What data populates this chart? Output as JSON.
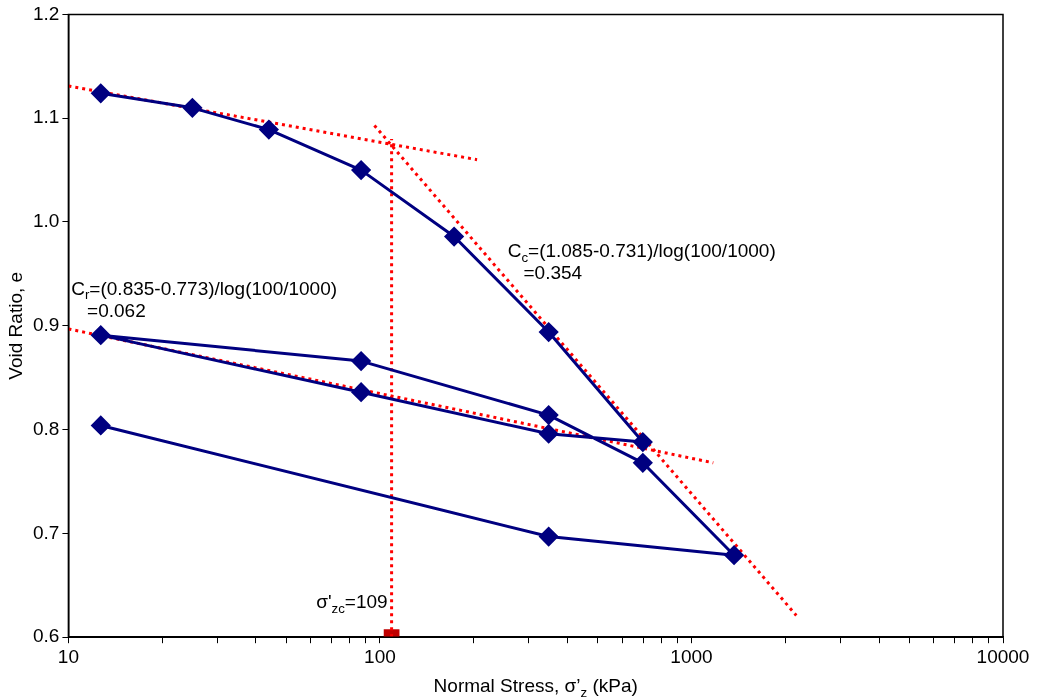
{
  "chart_data": {
    "type": "line",
    "xlabel": "Normal Stress, σ’$_{z}$ (kPa)",
    "ylabel": "Void Ratio, e",
    "xlim": [
      10,
      10000
    ],
    "log": "x",
    "xticks": [
      10,
      {
        "value": 20,
        "label": null
      },
      {
        "value": 30,
        "label": null
      },
      {
        "value": 40,
        "label": null
      },
      {
        "value": 50,
        "label": null
      },
      {
        "value": 60,
        "label": null
      },
      {
        "value": 70,
        "label": null
      },
      {
        "value": 80,
        "label": null
      },
      {
        "value": 90,
        "label": null
      },
      100,
      {
        "value": 200,
        "label": null
      },
      {
        "value": 300,
        "label": null
      },
      {
        "value": 400,
        "label": null
      },
      {
        "value": 500,
        "label": null
      },
      {
        "value": 600,
        "label": null
      },
      {
        "value": 700,
        "label": null
      },
      {
        "value": 800,
        "label": null
      },
      {
        "value": 900,
        "label": null
      },
      1000,
      {
        "value": 2000,
        "label": null
      },
      {
        "value": 3000,
        "label": null
      },
      {
        "value": 4000,
        "label": null
      },
      {
        "value": 5000,
        "label": null
      },
      {
        "value": 6000,
        "label": null
      },
      {
        "value": 7000,
        "label": null
      },
      {
        "value": 8000,
        "label": null
      },
      {
        "value": 9000,
        "label": null
      },
      10000
    ],
    "ylim": [
      0.6,
      1.2
    ],
    "yticks": [
      0.6,
      0.7,
      0.8,
      0.9,
      {
        "value": 1,
        "label": "1.0"
      },
      1.1,
      1.2
    ],
    "legend": false,
    "series": [
      {
        "type": "line",
        "color": "#000080",
        "marker": "diamond",
        "line_style": "solid",
        "x": [
          12.7,
          25,
          44,
          87,
          173,
          348,
          698,
          348,
          87,
          12.7,
          87,
          348,
          698,
          1370,
          348,
          12.7
        ],
        "values": [
          1.124,
          1.11,
          1.089,
          1.05,
          0.986,
          0.894,
          0.788,
          0.796,
          0.836,
          0.891,
          0.866,
          0.814,
          0.768,
          0.679,
          0.697,
          0.804
        ]
      },
      {
        "type": "line",
        "color": "#ff0000",
        "marker": "none",
        "line_style": "dotted",
        "x": [
          10,
          205
        ],
        "values": [
          1.131,
          1.06
        ]
      },
      {
        "type": "line",
        "color": "#ff0000",
        "marker": "none",
        "line_style": "dotted",
        "x": [
          96,
          2170
        ],
        "values": [
          1.093,
          0.621
        ]
      },
      {
        "type": "line",
        "color": "#ff0000",
        "marker": "none",
        "line_style": "dotted",
        "x": [
          10,
          1175
        ],
        "values": [
          0.897,
          0.768
        ]
      },
      {
        "type": "line",
        "color": "#ff0000",
        "marker": "none",
        "line_style": "dotted",
        "x": [
          109,
          109
        ],
        "values": [
          0.6,
          1.08
        ]
      },
      {
        "type": "scatter",
        "color": "#c00000",
        "marker": "square",
        "x": [
          109
        ],
        "values": [
          0.6
        ]
      }
    ],
    "annotations": [
      "C$_{c}$=(1.085-0.731)/log(100/1000)\n   =0.354",
      "C$_{r}$=(0.835-0.773)/log(100/1000)\n   =0.062",
      {
        "text": "σ'$_{zc}$=109",
        "x": 109,
        "y": 0.628
      }
    ]
  }
}
